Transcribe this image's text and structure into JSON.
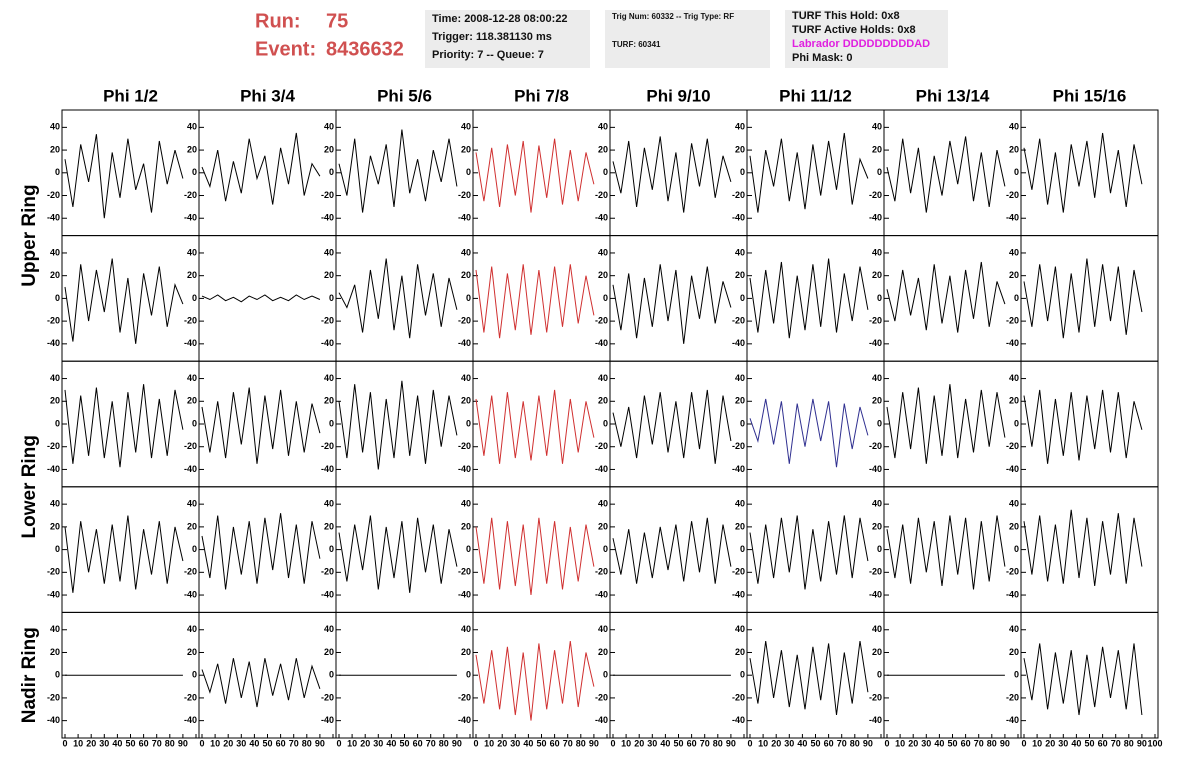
{
  "header": {
    "run_label": "Run:",
    "run": "75",
    "event_label": "Event:",
    "event": "8436632",
    "time": "Time: 2008-12-28 08:00:22",
    "trigger": "Trigger: 118.381130 ms",
    "priority": "Priority: 7 -- Queue: 7",
    "trig_num": "Trig Num: 60332 -- Trig Type: RF",
    "turf": "TURF: 60341",
    "turf_hold": "TURF This Hold: 0x8",
    "turf_active": "TURF Active Holds: 0x8",
    "labrador": "Labrador DDDDDDDDDAD",
    "phi_mask": "Phi Mask: 0"
  },
  "chart_data": {
    "type": "line-grid",
    "columns": [
      "Phi 1/2",
      "Phi 3/4",
      "Phi 5/6",
      "Phi 7/8",
      "Phi 9/10",
      "Phi 11/12",
      "Phi 13/14",
      "Phi 15/16"
    ],
    "rings": [
      "Upper Ring",
      "Lower Ring",
      "Nadir Ring"
    ],
    "x": [
      0,
      6,
      12,
      18,
      24,
      30,
      36,
      42,
      48,
      54,
      60,
      66,
      72,
      78,
      84,
      90
    ],
    "xlim": [
      0,
      100
    ],
    "xticks": [
      0,
      10,
      20,
      30,
      40,
      50,
      60,
      70,
      80,
      90,
      100
    ],
    "ylim": [
      -50,
      50
    ],
    "yticks": [
      -40,
      -20,
      0,
      20,
      40
    ],
    "panels": [
      [
        {
          "color": "#000000",
          "values": [
            12,
            -30,
            25,
            -8,
            34,
            -40,
            18,
            -22,
            30,
            -15,
            8,
            -35,
            28,
            -10,
            20,
            -5
          ]
        },
        {
          "color": "#000000",
          "values": [
            5,
            -12,
            20,
            -25,
            10,
            -18,
            30,
            -5,
            15,
            -28,
            22,
            -10,
            35,
            -20,
            8,
            -3
          ]
        },
        {
          "color": "#000000",
          "values": [
            8,
            -20,
            30,
            -35,
            15,
            -10,
            25,
            -30,
            38,
            -18,
            12,
            -25,
            20,
            -8,
            30,
            -12
          ]
        },
        {
          "color": "#d03030",
          "values": [
            18,
            -25,
            22,
            -30,
            25,
            -20,
            28,
            -35,
            24,
            -22,
            30,
            -28,
            20,
            -25,
            18,
            -10
          ]
        },
        {
          "color": "#000000",
          "values": [
            10,
            -18,
            28,
            -30,
            22,
            -15,
            32,
            -25,
            18,
            -35,
            26,
            -12,
            30,
            -22,
            15,
            -8
          ]
        },
        {
          "color": "#000000",
          "values": [
            15,
            -35,
            20,
            -12,
            30,
            -25,
            18,
            -32,
            25,
            -20,
            28,
            -15,
            35,
            -28,
            12,
            -5
          ]
        },
        {
          "color": "#000000",
          "values": [
            5,
            -25,
            30,
            -18,
            22,
            -35,
            15,
            -20,
            28,
            -10,
            32,
            -25,
            18,
            -30,
            20,
            -12
          ]
        },
        {
          "color": "#000000",
          "values": [
            22,
            -15,
            30,
            -28,
            18,
            -35,
            25,
            -12,
            28,
            -22,
            35,
            -18,
            20,
            -30,
            25,
            -10
          ]
        }
      ],
      [
        {
          "color": "#000000",
          "values": [
            10,
            -38,
            30,
            -20,
            25,
            -12,
            35,
            -30,
            18,
            -40,
            22,
            -15,
            28,
            -25,
            12,
            -5
          ]
        },
        {
          "color": "#000000",
          "values": [
            2,
            -1,
            3,
            -2,
            1,
            -3,
            2,
            -1,
            3,
            -2,
            1,
            -2,
            3,
            -1,
            2,
            -1
          ]
        },
        {
          "color": "#000000",
          "values": [
            5,
            -8,
            12,
            -30,
            25,
            -18,
            35,
            -28,
            20,
            -35,
            30,
            -15,
            22,
            -25,
            18,
            -10
          ]
        },
        {
          "color": "#d03030",
          "values": [
            25,
            -30,
            28,
            -35,
            22,
            -28,
            30,
            -32,
            25,
            -30,
            28,
            -25,
            30,
            -22,
            20,
            -15
          ]
        },
        {
          "color": "#000000",
          "values": [
            12,
            -28,
            22,
            -35,
            18,
            -25,
            30,
            -20,
            25,
            -40,
            20,
            -18,
            28,
            -22,
            15,
            -8
          ]
        },
        {
          "color": "#000000",
          "values": [
            18,
            -30,
            25,
            -22,
            32,
            -35,
            20,
            -28,
            30,
            -25,
            35,
            -30,
            22,
            -20,
            28,
            -10
          ]
        },
        {
          "color": "#000000",
          "values": [
            8,
            -20,
            25,
            -15,
            18,
            -28,
            30,
            -22,
            20,
            -30,
            25,
            -18,
            32,
            -25,
            15,
            -5
          ]
        },
        {
          "color": "#000000",
          "values": [
            15,
            -25,
            30,
            -20,
            28,
            -35,
            22,
            -30,
            35,
            -25,
            30,
            -20,
            28,
            -32,
            25,
            -12
          ]
        }
      ],
      [
        {
          "color": "#000000",
          "values": [
            30,
            -35,
            25,
            -28,
            32,
            -30,
            20,
            -38,
            28,
            -25,
            35,
            -30,
            22,
            -28,
            30,
            -5
          ]
        },
        {
          "color": "#000000",
          "values": [
            15,
            -25,
            20,
            -30,
            28,
            -18,
            32,
            -35,
            25,
            -22,
            30,
            -28,
            20,
            -25,
            18,
            -8
          ]
        },
        {
          "color": "#000000",
          "values": [
            20,
            -30,
            35,
            -25,
            28,
            -40,
            22,
            -30,
            38,
            -28,
            25,
            -35,
            30,
            -20,
            25,
            -10
          ]
        },
        {
          "color": "#d03030",
          "values": [
            22,
            -28,
            25,
            -35,
            28,
            -30,
            20,
            -32,
            25,
            -28,
            30,
            -35,
            22,
            -25,
            20,
            -12
          ]
        },
        {
          "color": "#000000",
          "values": [
            10,
            -20,
            15,
            -30,
            25,
            -18,
            28,
            -25,
            20,
            -30,
            28,
            -22,
            30,
            -35,
            25,
            -15
          ]
        },
        {
          "color": "#303090",
          "values": [
            5,
            -15,
            22,
            -18,
            20,
            -35,
            18,
            -20,
            22,
            -15,
            20,
            -38,
            18,
            -22,
            15,
            -10
          ]
        },
        {
          "color": "#000000",
          "values": [
            15,
            -30,
            28,
            -22,
            32,
            -35,
            25,
            -28,
            35,
            -30,
            22,
            -25,
            30,
            -20,
            28,
            -12
          ]
        },
        {
          "color": "#000000",
          "values": [
            25,
            -20,
            30,
            -35,
            22,
            -28,
            28,
            -32,
            25,
            -22,
            30,
            -25,
            28,
            -30,
            20,
            -5
          ]
        }
      ],
      [
        {
          "color": "#000000",
          "values": [
            20,
            -38,
            25,
            -20,
            18,
            -30,
            22,
            -28,
            30,
            -35,
            18,
            -22,
            25,
            -30,
            20,
            -10
          ]
        },
        {
          "color": "#000000",
          "values": [
            12,
            -25,
            30,
            -35,
            20,
            -22,
            25,
            -30,
            28,
            -18,
            32,
            -25,
            22,
            -30,
            25,
            -8
          ]
        },
        {
          "color": "#000000",
          "values": [
            15,
            -28,
            22,
            -18,
            30,
            -35,
            20,
            -25,
            25,
            -38,
            28,
            -20,
            22,
            -30,
            18,
            -15
          ]
        },
        {
          "color": "#d03030",
          "values": [
            20,
            -30,
            28,
            -35,
            25,
            -32,
            22,
            -40,
            28,
            -30,
            25,
            -35,
            20,
            -28,
            22,
            -15
          ]
        },
        {
          "color": "#000000",
          "values": [
            10,
            -22,
            18,
            -30,
            15,
            -25,
            20,
            -18,
            22,
            -28,
            25,
            -20,
            28,
            -30,
            22,
            -15
          ]
        },
        {
          "color": "#000000",
          "values": [
            15,
            -30,
            22,
            -25,
            28,
            -20,
            30,
            -35,
            18,
            -28,
            25,
            -22,
            30,
            -25,
            28,
            -10
          ]
        },
        {
          "color": "#000000",
          "values": [
            18,
            -25,
            22,
            -30,
            28,
            -20,
            25,
            -32,
            30,
            -22,
            28,
            -35,
            25,
            -28,
            30,
            -15
          ]
        },
        {
          "color": "#000000",
          "values": [
            25,
            -22,
            30,
            -28,
            22,
            -30,
            35,
            -25,
            28,
            -32,
            25,
            -22,
            32,
            -30,
            28,
            -15
          ]
        }
      ],
      [
        {
          "color": "#000000",
          "values": [
            0,
            0,
            0,
            0,
            0,
            0,
            0,
            0,
            0,
            0,
            0,
            0,
            0,
            0,
            0,
            0
          ]
        },
        {
          "color": "#000000",
          "values": [
            5,
            -15,
            10,
            -25,
            15,
            -20,
            12,
            -28,
            15,
            -18,
            10,
            -22,
            15,
            -20,
            8,
            -12
          ]
        },
        {
          "color": "#000000",
          "values": [
            0,
            0,
            0,
            0,
            0,
            0,
            0,
            0,
            0,
            0,
            0,
            0,
            0,
            0,
            0,
            0
          ]
        },
        {
          "color": "#d03030",
          "values": [
            18,
            -25,
            22,
            -30,
            25,
            -35,
            20,
            -40,
            28,
            -30,
            22,
            -25,
            30,
            -28,
            20,
            -10
          ]
        },
        {
          "color": "#000000",
          "values": [
            0,
            0,
            0,
            0,
            0,
            0,
            0,
            0,
            0,
            0,
            0,
            0,
            0,
            0,
            0,
            0
          ]
        },
        {
          "color": "#000000",
          "values": [
            15,
            -25,
            30,
            -20,
            22,
            -28,
            18,
            -30,
            25,
            -22,
            28,
            -35,
            20,
            -25,
            30,
            -15
          ]
        },
        {
          "color": "#000000",
          "values": [
            0,
            0,
            0,
            0,
            0,
            0,
            0,
            0,
            0,
            0,
            0,
            0,
            0,
            0,
            0,
            0
          ]
        },
        {
          "color": "#000000",
          "values": [
            15,
            -22,
            28,
            -30,
            20,
            -25,
            22,
            -35,
            18,
            -28,
            25,
            -20,
            22,
            -30,
            28,
            -35
          ]
        }
      ]
    ]
  }
}
